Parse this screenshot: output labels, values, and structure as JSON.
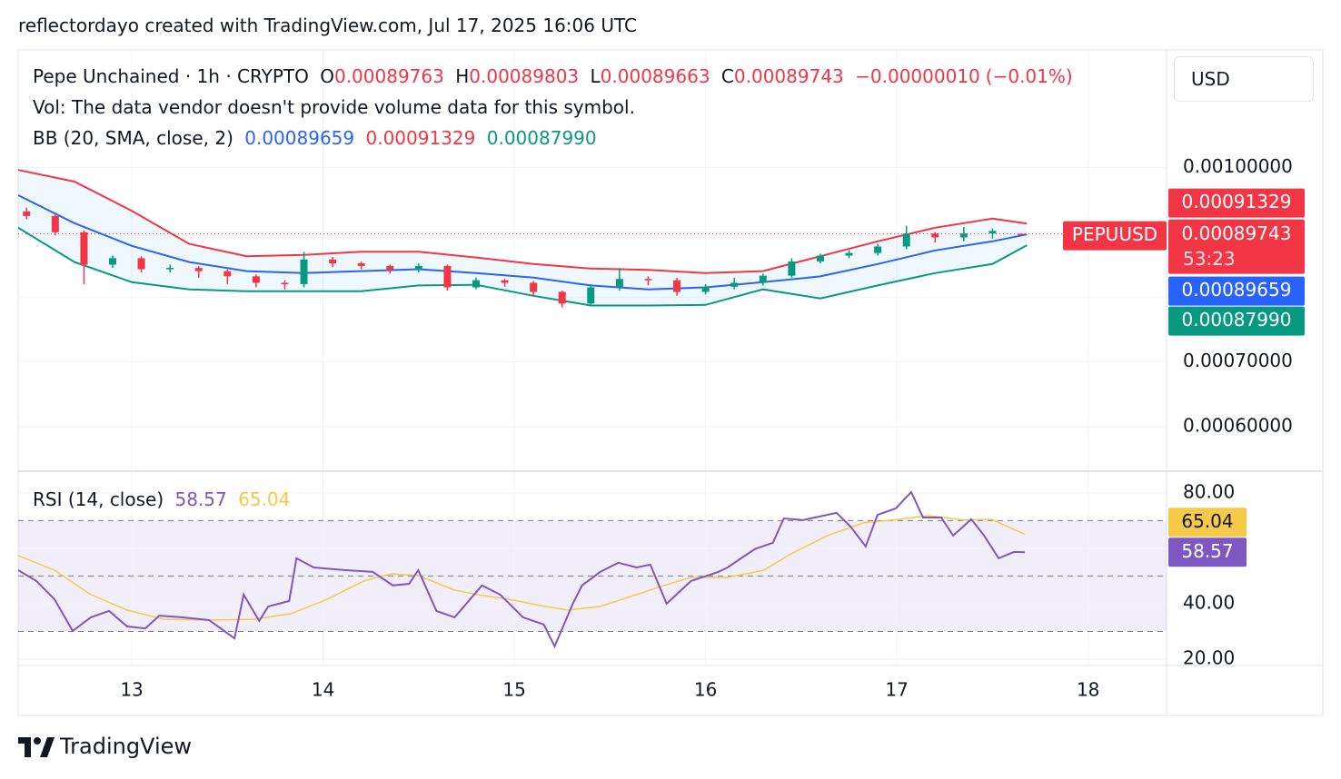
{
  "header": "reflectordayo created with TradingView.com, Jul 17, 2025 16:06 UTC",
  "brand": "TradingView",
  "currency": "USD",
  "chart_data": [
    {
      "type": "candlestick",
      "title": "Pepe Unchained · 1h · CRYPTO",
      "ohlc": [
        {
          "key": "O",
          "value": 0.00089763
        },
        {
          "key": "H",
          "value": 0.00089803
        },
        {
          "key": "L",
          "value": 0.00089663
        },
        {
          "key": "C",
          "value": 0.00089743
        }
      ],
      "change": {
        "value": -1e-07,
        "label": "−0.00000010"
      },
      "change_pct": {
        "value": -0.01,
        "label": "(−0.01%)"
      },
      "volume_note": "Vol: The data vendor doesn't provide volume data for this symbol.",
      "symbol": "PEPUUSD",
      "countdown": "53:23",
      "up_color": "#089981",
      "down_color": "#f23645",
      "xlim": [
        12.406,
        18.41
      ],
      "xticks": [
        13,
        14,
        15,
        16,
        17,
        18
      ],
      "ylim": [
        0.000533,
        0.001181
      ],
      "yticks": [
        {
          "value": 0.001,
          "label": "0.00100000"
        },
        {
          "value": 0.0007,
          "label": "0.00070000"
        },
        {
          "value": 0.0006,
          "label": "0.00060000"
        }
      ],
      "ygrid": [
        0.001,
        0.0009,
        0.0008,
        0.0007,
        0.0006
      ],
      "x": [
        12.45,
        12.6,
        12.75,
        12.9,
        13.05,
        13.2,
        13.35,
        13.5,
        13.65,
        13.8,
        13.9,
        14.05,
        14.2,
        14.35,
        14.5,
        14.65,
        14.8,
        14.95,
        15.1,
        15.25,
        15.4,
        15.55,
        15.7,
        15.85,
        16.0,
        16.15,
        16.3,
        16.45,
        16.6,
        16.75,
        16.9,
        17.05,
        17.2,
        17.35,
        17.5,
        17.65
      ],
      "open": [
        0.000932,
        0.000925,
        0.0009,
        0.00085,
        0.00086,
        0.000843,
        0.000845,
        0.00084,
        0.000832,
        0.000822,
        0.00082,
        0.000858,
        0.000852,
        0.000848,
        0.000842,
        0.000848,
        0.000815,
        0.000826,
        0.000822,
        0.000808,
        0.00079,
        0.000815,
        0.000828,
        0.000826,
        0.000808,
        0.000816,
        0.000822,
        0.000833,
        0.000855,
        0.000864,
        0.000868,
        0.000878,
        0.000898,
        0.000892,
        0.000898,
        0.00089763
      ],
      "high": [
        0.000938,
        0.000928,
        0.000903,
        0.000864,
        0.000863,
        0.00085,
        0.000848,
        0.000843,
        0.000835,
        0.000826,
        0.00087,
        0.000862,
        0.000855,
        0.00085,
        0.000852,
        0.00085,
        0.00083,
        0.000828,
        0.000825,
        0.00081,
        0.00082,
        0.000845,
        0.000832,
        0.00083,
        0.00082,
        0.00083,
        0.000836,
        0.00086,
        0.000867,
        0.000872,
        0.000882,
        0.00091,
        0.0009,
        0.000908,
        0.000906,
        0.00089803
      ],
      "low": [
        0.00092,
        0.000895,
        0.00082,
        0.000845,
        0.000838,
        0.000838,
        0.00083,
        0.00082,
        0.000815,
        0.000812,
        0.000815,
        0.000846,
        0.000843,
        0.000836,
        0.000838,
        0.00081,
        0.000812,
        0.000816,
        0.000802,
        0.000784,
        0.000786,
        0.00081,
        0.000818,
        0.000802,
        0.000804,
        0.000812,
        0.000818,
        0.00083,
        0.000852,
        0.00086,
        0.000864,
        0.000874,
        0.000884,
        0.000886,
        0.00089,
        0.00089663
      ],
      "close": [
        0.000925,
        0.0009,
        0.00085,
        0.00086,
        0.000843,
        0.000845,
        0.00084,
        0.000832,
        0.000822,
        0.00082,
        0.000858,
        0.000852,
        0.000848,
        0.000842,
        0.000848,
        0.000815,
        0.000826,
        0.000822,
        0.000808,
        0.00079,
        0.000815,
        0.000828,
        0.000826,
        0.000808,
        0.000816,
        0.000822,
        0.000833,
        0.000855,
        0.000864,
        0.000868,
        0.000878,
        0.000898,
        0.000892,
        0.000898,
        0.000902,
        0.00089743
      ],
      "bands": {
        "name": "BB (20, SMA, close, 2)",
        "x": [
          12.406,
          12.7,
          13.0,
          13.3,
          13.6,
          13.9,
          14.2,
          14.5,
          14.8,
          15.1,
          15.4,
          15.7,
          16.0,
          16.3,
          16.6,
          16.9,
          17.2,
          17.5,
          17.68
        ],
        "series": [
          {
            "color": "#2962ff",
            "values": [
              0.000957,
              0.000914,
              0.000879,
              0.000854,
              0.00084,
              0.000837,
              0.00084,
              0.000843,
              0.000837,
              0.00083,
              0.000818,
              0.000812,
              0.000815,
              0.000823,
              0.000832,
              0.000851,
              0.000872,
              0.000886,
              0.00089659
            ],
            "last": {
              "value": 0.00089659,
              "label": "0.00089659"
            }
          },
          {
            "color": "#f23645",
            "values": [
              0.000996,
              0.000978,
              0.000933,
              0.000882,
              0.000863,
              0.000865,
              0.00087,
              0.00087,
              0.000861,
              0.000851,
              0.000844,
              0.000842,
              0.000837,
              0.00084,
              0.000863,
              0.000886,
              0.000907,
              0.000921,
              0.00091329
            ],
            "last": {
              "value": 0.00091329,
              "label": "0.00091329"
            }
          },
          {
            "color": "#089981",
            "values": [
              0.000907,
              0.000854,
              0.000823,
              0.000812,
              0.000809,
              0.000809,
              0.000809,
              0.000818,
              0.000819,
              0.000802,
              0.000787,
              0.000787,
              0.000788,
              0.000812,
              0.000798,
              0.000818,
              0.000837,
              0.000851,
              0.0008799
            ],
            "last": {
              "value": 0.0008799,
              "label": "0.00087990"
            }
          }
        ]
      }
    },
    {
      "type": "line",
      "title": "RSI (14, close)",
      "xlim": [
        12.406,
        18.41
      ],
      "ylim": [
        17.7,
        87.5
      ],
      "yticks": [
        {
          "value": 80,
          "label": "80.00"
        },
        {
          "value": 40,
          "label": "40.00"
        },
        {
          "value": 20,
          "label": "20.00"
        }
      ],
      "ygrid": [
        80,
        60,
        40,
        20
      ],
      "levels": [
        70,
        50,
        30
      ],
      "series": [
        {
          "color": "#7e57c2",
          "x": [
            12.406,
            12.501,
            12.596,
            12.691,
            12.786,
            12.881,
            12.976,
            13.071,
            13.143,
            13.262,
            13.404,
            13.537,
            13.585,
            13.666,
            13.713,
            13.823,
            13.861,
            13.951,
            14.117,
            14.26,
            14.365,
            14.45,
            14.498,
            14.593,
            14.688,
            14.831,
            14.926,
            15.045,
            15.154,
            15.211,
            15.306,
            15.354,
            15.449,
            15.544,
            15.639,
            15.711,
            15.796,
            15.924,
            16.067,
            16.115,
            16.257,
            16.352,
            16.409,
            16.509,
            16.685,
            16.757,
            16.837,
            16.899,
            16.994,
            17.075,
            17.137,
            17.232,
            17.294,
            17.389,
            17.456,
            17.532,
            17.612,
            17.669
          ],
          "values": [
            52.1,
            48.2,
            41.6,
            30.2,
            35.1,
            37.4,
            31.8,
            31.1,
            35.7,
            35.1,
            34.1,
            27.5,
            43.3,
            33.8,
            39.0,
            41.0,
            56.4,
            53.1,
            52.1,
            51.5,
            46.6,
            47.2,
            52.1,
            37.4,
            35.1,
            46.6,
            43.3,
            35.1,
            32.5,
            24.6,
            40.0,
            46.6,
            51.5,
            54.8,
            53.1,
            54.1,
            40.0,
            48.2,
            51.5,
            53.1,
            59.7,
            62.0,
            70.8,
            70.2,
            72.8,
            67.9,
            60.7,
            72.1,
            74.4,
            80.3,
            71.1,
            71.1,
            64.6,
            70.5,
            64.6,
            56.4,
            58.7,
            58.57
          ]
        },
        {
          "color": "#f7c948",
          "x": [
            12.406,
            12.596,
            12.786,
            12.976,
            13.166,
            13.404,
            13.642,
            13.832,
            14.022,
            14.213,
            14.355,
            14.498,
            14.688,
            14.831,
            14.973,
            15.164,
            15.282,
            15.449,
            15.639,
            15.782,
            15.924,
            16.115,
            16.305,
            16.447,
            16.637,
            16.828,
            17.018,
            17.161,
            17.351,
            17.494,
            17.669
          ],
          "values": [
            57.4,
            52.1,
            43.3,
            37.7,
            34.4,
            34.1,
            34.4,
            36.4,
            41.6,
            48.2,
            50.8,
            50.2,
            44.9,
            43.0,
            41.6,
            39.0,
            37.7,
            39.0,
            43.3,
            46.6,
            49.5,
            49.5,
            52.1,
            58.0,
            64.6,
            69.2,
            70.5,
            71.8,
            70.2,
            70.5,
            65.04
          ]
        }
      ]
    }
  ]
}
